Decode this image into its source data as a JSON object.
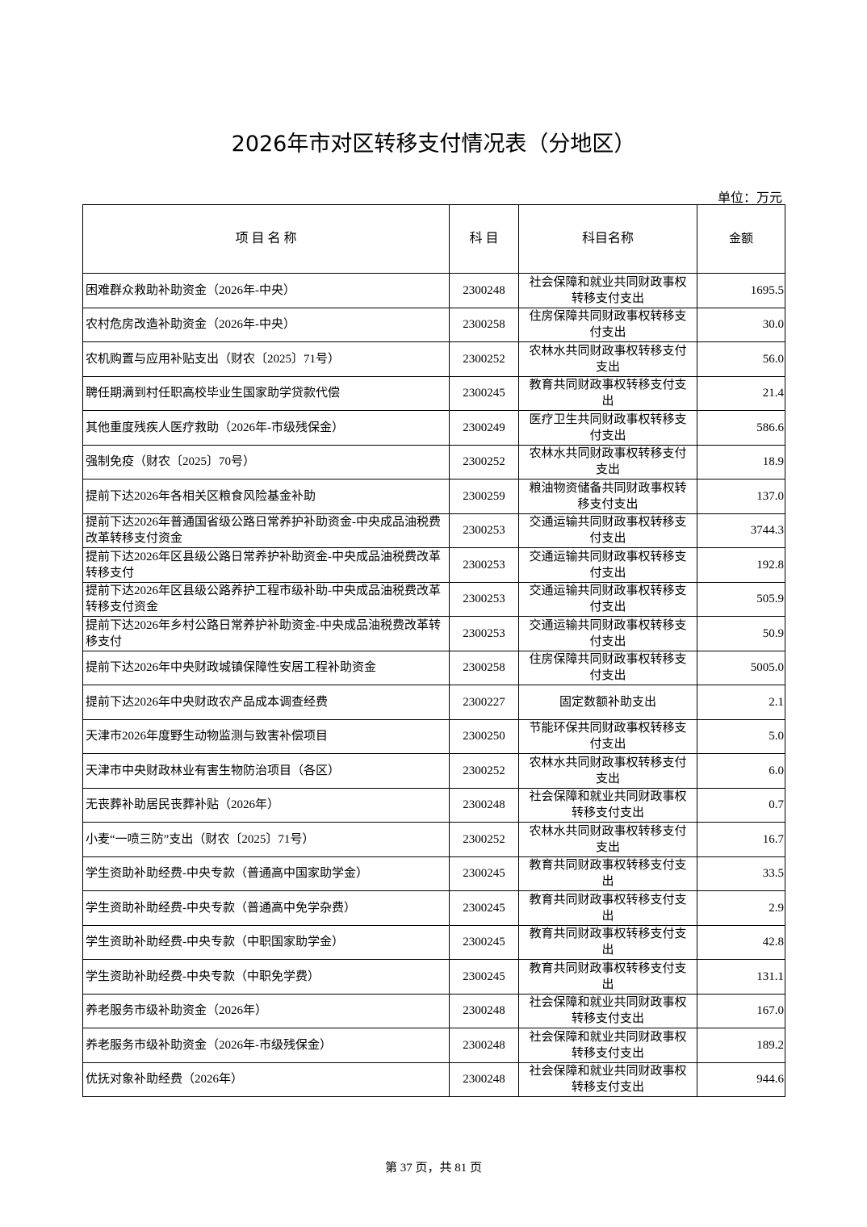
{
  "title": "2026年市对区转移支付情况表（分地区）",
  "unit": "单位：万元",
  "table": {
    "headers": [
      "项 目 名 称",
      "科 目",
      "科目名称",
      "金额"
    ],
    "rows": [
      [
        "困难群众救助补助资金（2026年-中央）",
        "2300248",
        "社会保障和就业共同财政事权转移支付支出",
        "1695.5"
      ],
      [
        "农村危房改造补助资金（2026年-中央）",
        "2300258",
        "住房保障共同财政事权转移支付支出",
        "30.0"
      ],
      [
        "农机购置与应用补贴支出（财农〔2025〕71号）",
        "2300252",
        "农林水共同财政事权转移支付支出",
        "56.0"
      ],
      [
        "聘任期满到村任职高校毕业生国家助学贷款代偿",
        "2300245",
        "教育共同财政事权转移支付支出",
        "21.4"
      ],
      [
        "其他重度残疾人医疗救助（2026年-市级残保金）",
        "2300249",
        "医疗卫生共同财政事权转移支付支出",
        "586.6"
      ],
      [
        "强制免疫（财农〔2025〕70号）",
        "2300252",
        "农林水共同财政事权转移支付支出",
        "18.9"
      ],
      [
        "提前下达2026年各相关区粮食风险基金补助",
        "2300259",
        "粮油物资储备共同财政事权转移支付支出",
        "137.0"
      ],
      [
        "提前下达2026年普通国省级公路日常养护补助资金-中央成品油税费改革转移支付资金",
        "2300253",
        "交通运输共同财政事权转移支付支出",
        "3744.3"
      ],
      [
        "提前下达2026年区县级公路日常养护补助资金-中央成品油税费改革转移支付",
        "2300253",
        "交通运输共同财政事权转移支付支出",
        "192.8"
      ],
      [
        "提前下达2026年区县级公路养护工程市级补助-中央成品油税费改革转移支付资金",
        "2300253",
        "交通运输共同财政事权转移支付支出",
        "505.9"
      ],
      [
        "提前下达2026年乡村公路日常养护补助资金-中央成品油税费改革转移支付",
        "2300253",
        "交通运输共同财政事权转移支付支出",
        "50.9"
      ],
      [
        "提前下达2026年中央财政城镇保障性安居工程补助资金",
        "2300258",
        "住房保障共同财政事权转移支付支出",
        "5005.0"
      ],
      [
        "提前下达2026年中央财政农产品成本调查经费",
        "2300227",
        "固定数额补助支出",
        "2.1"
      ],
      [
        "天津市2026年度野生动物监测与致害补偿项目",
        "2300250",
        "节能环保共同财政事权转移支付支出",
        "5.0"
      ],
      [
        "天津市中央财政林业有害生物防治项目（各区）",
        "2300252",
        "农林水共同财政事权转移支付支出",
        "6.0"
      ],
      [
        "无丧葬补助居民丧葬补贴（2026年）",
        "2300248",
        "社会保障和就业共同财政事权转移支付支出",
        "0.7"
      ],
      [
        "小麦“一喷三防”支出（财农〔2025〕71号）",
        "2300252",
        "农林水共同财政事权转移支付支出",
        "16.7"
      ],
      [
        "学生资助补助经费-中央专款（普通高中国家助学金）",
        "2300245",
        "教育共同财政事权转移支付支出",
        "33.5"
      ],
      [
        "学生资助补助经费-中央专款（普通高中免学杂费）",
        "2300245",
        "教育共同财政事权转移支付支出",
        "2.9"
      ],
      [
        "学生资助补助经费-中央专款（中职国家助学金）",
        "2300245",
        "教育共同财政事权转移支付支出",
        "42.8"
      ],
      [
        "学生资助补助经费-中央专款（中职免学费）",
        "2300245",
        "教育共同财政事权转移支付支出",
        "131.1"
      ],
      [
        "养老服务市级补助资金（2026年）",
        "2300248",
        "社会保障和就业共同财政事权转移支付支出",
        "167.0"
      ],
      [
        "养老服务市级补助资金（2026年-市级残保金）",
        "2300248",
        "社会保障和就业共同财政事权转移支付支出",
        "189.2"
      ],
      [
        "优抚对象补助经费（2026年）",
        "2300248",
        "社会保障和就业共同财政事权转移支付支出",
        "944.6"
      ]
    ]
  },
  "footer": "第 37 页，共 81 页"
}
